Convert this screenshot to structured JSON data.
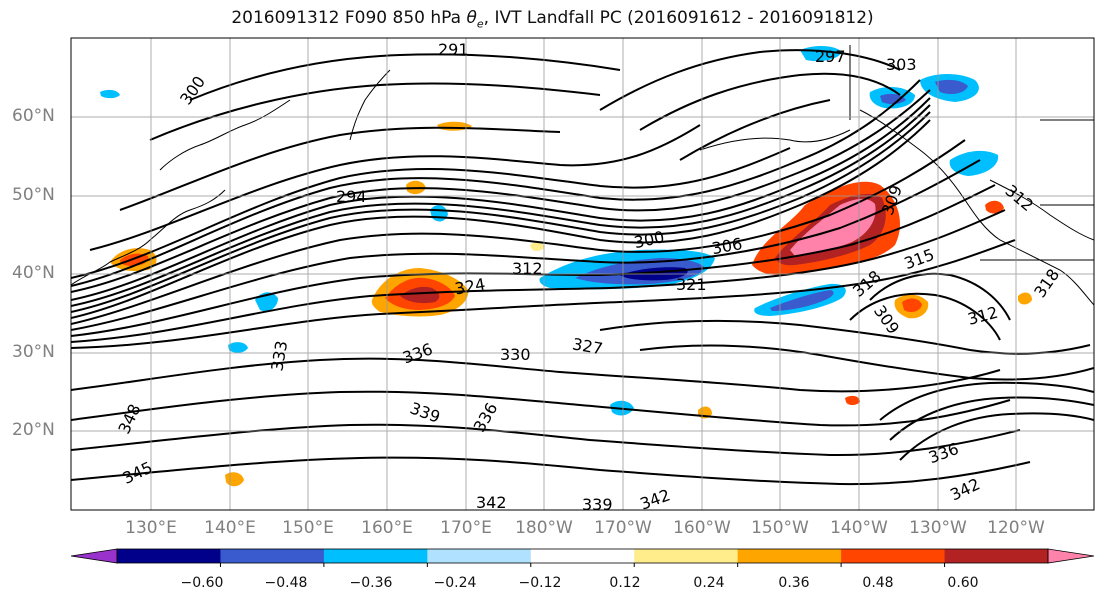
{
  "title": "2016091312 F090 850 hPa θe, IVT Landfall PC (2016091612 - 2016091812)",
  "lat_labels": [
    "60°N",
    "50°N",
    "40°N",
    "30°N",
    "20°N"
  ],
  "lon_labels": [
    "130°E",
    "140°E",
    "150°E",
    "160°E",
    "170°E",
    "180°W",
    "170°W",
    "160°W",
    "150°W",
    "140°W",
    "130°W",
    "120°W"
  ],
  "contour_labels": [
    "291",
    "297",
    "303",
    "300",
    "294",
    "300",
    "306",
    "312",
    "324",
    "321",
    "318",
    "315",
    "309",
    "312",
    "318",
    "336",
    "330",
    "327",
    "333",
    "339",
    "336",
    "348",
    "345",
    "342",
    "339",
    "342",
    "336",
    "342",
    "309",
    "312"
  ],
  "colorbar": {
    "tick_labels": [
      "−0.60",
      "−0.48",
      "−0.36",
      "−0.24",
      "−0.12",
      "0.12",
      "0.24",
      "0.36",
      "0.48",
      "0.60"
    ],
    "colors": [
      "#9932cc",
      "#00008b",
      "#3a5bcd",
      "#00bfff",
      "#b0e2ff",
      "#ffffff",
      "#ffec8b",
      "#ffa500",
      "#ff4500",
      "#b22222",
      "#ff82ab"
    ]
  }
}
